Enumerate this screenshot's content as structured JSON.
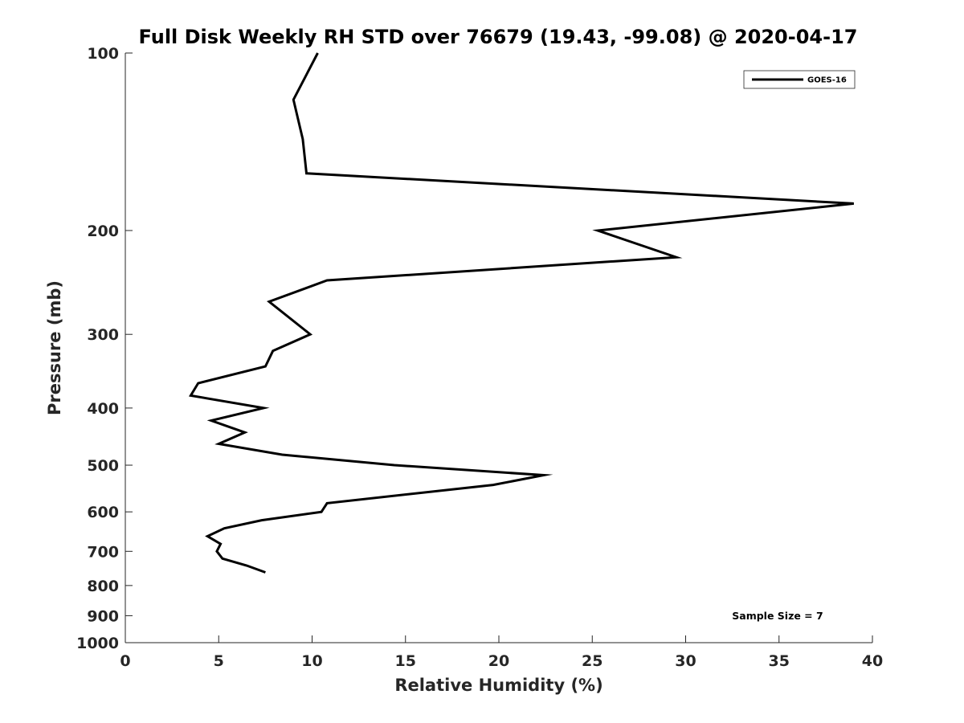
{
  "chart_data": {
    "type": "line",
    "title": "Full Disk Weekly RH STD over 76679 (19.43, -99.08) @ 2020-04-17",
    "xlabel": "Relative Humidity (%)",
    "ylabel": "Pressure (mb)",
    "xlim": [
      0,
      40
    ],
    "ylim": [
      100,
      1000
    ],
    "y_scale": "log",
    "y_reversed": true,
    "grid": false,
    "legend_position": "top-right",
    "x_ticks": [
      "0",
      "5",
      "10",
      "15",
      "20",
      "25",
      "30",
      "35",
      "40"
    ],
    "y_ticks": [
      "100",
      "200",
      "300",
      "400",
      "500",
      "600",
      "700",
      "800",
      "900",
      "1000"
    ],
    "annotation": "Sample Size = 7",
    "series": [
      {
        "name": "GOES-16",
        "color": "#000000",
        "points": [
          {
            "x": 10.3,
            "y": 100
          },
          {
            "x": 9.0,
            "y": 120
          },
          {
            "x": 9.5,
            "y": 140
          },
          {
            "x": 9.7,
            "y": 160
          },
          {
            "x": 39.0,
            "y": 180
          },
          {
            "x": 25.3,
            "y": 200
          },
          {
            "x": 29.5,
            "y": 222
          },
          {
            "x": 10.8,
            "y": 243
          },
          {
            "x": 7.7,
            "y": 264
          },
          {
            "x": 9.9,
            "y": 300
          },
          {
            "x": 7.9,
            "y": 320
          },
          {
            "x": 7.5,
            "y": 340
          },
          {
            "x": 3.9,
            "y": 363
          },
          {
            "x": 3.5,
            "y": 381
          },
          {
            "x": 7.4,
            "y": 400
          },
          {
            "x": 4.6,
            "y": 420
          },
          {
            "x": 6.4,
            "y": 440
          },
          {
            "x": 5.0,
            "y": 460
          },
          {
            "x": 8.4,
            "y": 480
          },
          {
            "x": 14.4,
            "y": 500
          },
          {
            "x": 22.4,
            "y": 520
          },
          {
            "x": 19.7,
            "y": 540
          },
          {
            "x": 10.8,
            "y": 580
          },
          {
            "x": 10.5,
            "y": 600
          },
          {
            "x": 7.3,
            "y": 620
          },
          {
            "x": 5.3,
            "y": 640
          },
          {
            "x": 4.4,
            "y": 660
          },
          {
            "x": 5.1,
            "y": 680
          },
          {
            "x": 4.9,
            "y": 700
          },
          {
            "x": 5.2,
            "y": 720
          },
          {
            "x": 6.5,
            "y": 740
          },
          {
            "x": 7.5,
            "y": 760
          }
        ]
      }
    ]
  }
}
